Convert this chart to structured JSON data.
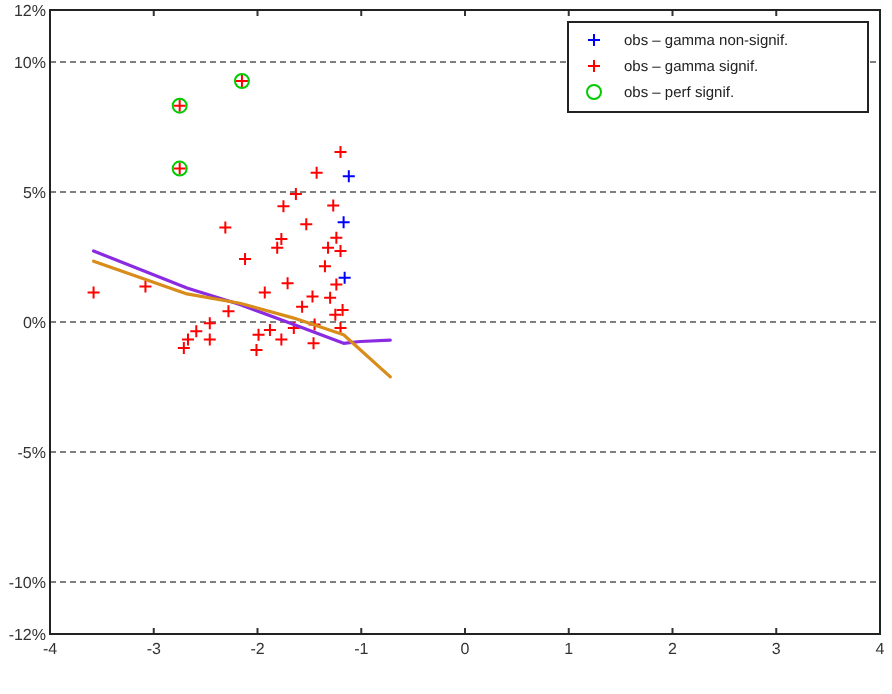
{
  "chart_data": {
    "type": "scatter",
    "xlim": [
      -4,
      4
    ],
    "xticks": [
      -4,
      -3,
      -2,
      -1,
      0,
      1,
      2,
      3,
      4
    ],
    "ylim": [
      -12,
      12
    ],
    "yticks": [
      {
        "value": -12,
        "label": "-12%"
      },
      {
        "value": -10,
        "label": "-10%"
      },
      {
        "value": -5,
        "label": "-5%"
      },
      {
        "value": 0,
        "label": "0%"
      },
      {
        "value": 5,
        "label": "5%"
      },
      {
        "value": 10,
        "label": "10%"
      },
      {
        "value": 12,
        "label": "12%"
      }
    ],
    "grid": "y",
    "legend": "top right",
    "series": [
      {
        "name": "obs – gamma non-signif.",
        "marker": "cross",
        "color": "#0000ff",
        "x": [
          -1.17,
          -1.16,
          -1.12
        ],
        "values": [
          3.84,
          1.7,
          5.61
        ]
      },
      {
        "name": "obs – gamma signif.",
        "marker": "cross",
        "color": "#ff0000",
        "x": [
          -3.58,
          -3.08,
          -2.75,
          -2.75,
          -2.15,
          -2.31,
          -2.12,
          -2.28,
          -1.93,
          -1.71,
          -1.77,
          -1.81,
          -1.75,
          -1.63,
          -1.43,
          -1.53,
          -1.27,
          -1.24,
          -1.32,
          -1.2,
          -1.35,
          -1.24,
          -1.3,
          -1.47,
          -1.57,
          -1.25,
          -1.18,
          -1.45,
          -1.65,
          -1.88,
          -1.99,
          -1.77,
          -2.01,
          -2.46,
          -2.46,
          -2.59,
          -2.67,
          -2.71,
          -1.2,
          -1.2,
          -1.46
        ],
        "values": [
          1.13,
          1.37,
          8.32,
          5.9,
          9.27,
          3.63,
          2.42,
          0.41,
          1.13,
          1.49,
          3.19,
          2.86,
          4.45,
          4.92,
          5.74,
          3.76,
          4.48,
          3.24,
          2.86,
          2.73,
          2.14,
          1.44,
          0.93,
          0.98,
          0.59,
          0.28,
          0.46,
          -0.1,
          -0.23,
          -0.31,
          -0.49,
          -0.67,
          -1.08,
          -0.05,
          -0.67,
          -0.36,
          -0.67,
          -1.0,
          6.54,
          -0.23,
          -0.82
        ]
      },
      {
        "name": "obs – perf signif.",
        "marker": "circle",
        "color": "#00cc00",
        "x": [
          -2.75,
          -2.75,
          -2.15
        ],
        "values": [
          8.32,
          5.9,
          9.27
        ]
      },
      {
        "type": "line",
        "color": "#8a2be2",
        "x": [
          -3.58,
          -2.68,
          -2.17,
          -1.65,
          -1.17,
          -1.01,
          -0.72
        ],
        "values": [
          2.73,
          1.31,
          0.67,
          -0.1,
          -0.82,
          -0.75,
          -0.7
        ]
      },
      {
        "type": "line",
        "color": "#d98c1a",
        "x": [
          -3.58,
          -2.68,
          -2.17,
          -1.65,
          -1.17,
          -0.72
        ],
        "values": [
          2.34,
          1.08,
          0.72,
          0.15,
          -0.49,
          -2.11
        ]
      }
    ]
  }
}
